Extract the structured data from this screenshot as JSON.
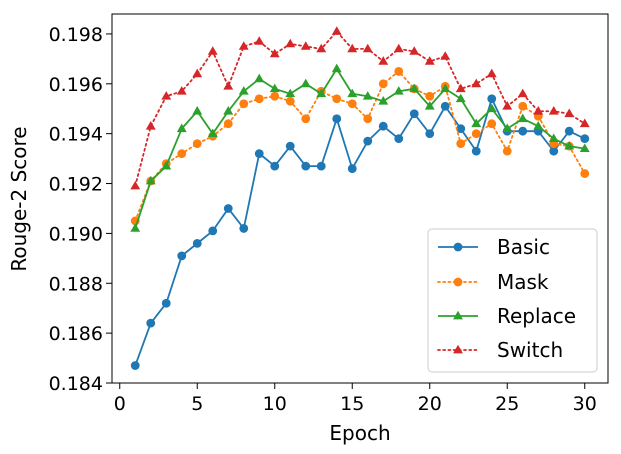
{
  "chart_data": {
    "type": "line",
    "title": "",
    "xlabel": "Epoch",
    "ylabel": "Rouge-2 Score",
    "xlim": [
      -0.5,
      31.5
    ],
    "ylim": [
      0.184,
      0.1988
    ],
    "xticks": [
      0,
      5,
      10,
      15,
      20,
      25,
      30
    ],
    "yticks": [
      0.184,
      0.186,
      0.188,
      0.19,
      0.192,
      0.194,
      0.196,
      0.198
    ],
    "grid": false,
    "legend_position": "lower-right",
    "x": [
      1,
      2,
      3,
      4,
      5,
      6,
      7,
      8,
      9,
      10,
      11,
      12,
      13,
      14,
      15,
      16,
      17,
      18,
      19,
      20,
      21,
      22,
      23,
      24,
      25,
      26,
      27,
      28,
      29,
      30
    ],
    "series": [
      {
        "name": "Basic",
        "color": "#1f77b4",
        "line_style": "solid",
        "marker": "circle",
        "values": [
          0.1847,
          0.1864,
          0.1872,
          0.1891,
          0.1896,
          0.1901,
          0.191,
          0.1902,
          0.1932,
          0.1927,
          0.1935,
          0.1927,
          0.1927,
          0.1946,
          0.1926,
          0.1937,
          0.1943,
          0.1938,
          0.1948,
          0.194,
          0.1951,
          0.1942,
          0.1933,
          0.1954,
          0.1941,
          0.1941,
          0.1941,
          0.1933,
          0.1941,
          0.1938
        ]
      },
      {
        "name": "Mask",
        "color": "#ff7f0e",
        "line_style": "dotted",
        "marker": "circle",
        "values": [
          0.1905,
          0.1921,
          0.1928,
          0.1932,
          0.1936,
          0.1939,
          0.1944,
          0.1952,
          0.1954,
          0.1955,
          0.1953,
          0.1946,
          0.1957,
          0.1954,
          0.1952,
          0.1946,
          0.196,
          0.1965,
          0.1958,
          0.1955,
          0.1959,
          0.1936,
          0.194,
          0.1944,
          0.1933,
          0.1951,
          0.1947,
          0.1936,
          0.1935,
          0.1924
        ]
      },
      {
        "name": "Replace",
        "color": "#2ca02c",
        "line_style": "solid",
        "marker": "triangle",
        "values": [
          0.1902,
          0.1921,
          0.1927,
          0.1942,
          0.1949,
          0.194,
          0.1949,
          0.1957,
          0.1962,
          0.1958,
          0.1956,
          0.196,
          0.1956,
          0.1966,
          0.1956,
          0.1955,
          0.1953,
          0.1957,
          0.1958,
          0.1951,
          0.1958,
          0.1954,
          0.1944,
          0.195,
          0.1942,
          0.1946,
          0.1943,
          0.1938,
          0.1935,
          0.1934
        ]
      },
      {
        "name": "Switch",
        "color": "#d62728",
        "line_style": "dotted",
        "marker": "triangle",
        "values": [
          0.1919,
          0.1943,
          0.1955,
          0.1957,
          0.1964,
          0.1973,
          0.1959,
          0.1975,
          0.1977,
          0.1972,
          0.1976,
          0.1975,
          0.1974,
          0.1981,
          0.1974,
          0.1974,
          0.1969,
          0.1974,
          0.1973,
          0.1969,
          0.1971,
          0.1958,
          0.196,
          0.1964,
          0.1951,
          0.1956,
          0.1949,
          0.1949,
          0.1948,
          0.1944
        ]
      }
    ]
  }
}
